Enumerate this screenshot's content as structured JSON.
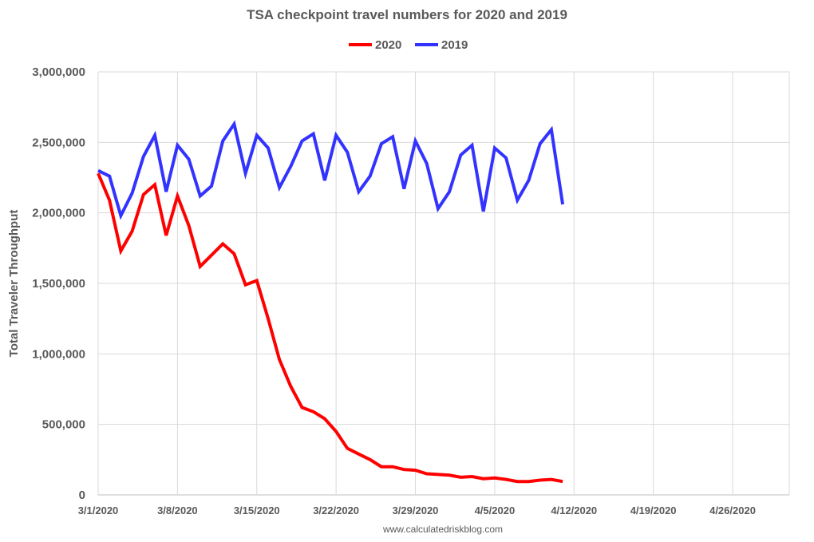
{
  "chart_data": {
    "type": "line",
    "title": "TSA checkpoint travel numbers for 2020 and 2019",
    "xlabel": "",
    "ylabel": "Total Traveler Throughput",
    "ylim": [
      0,
      3000000
    ],
    "yticks": [
      0,
      500000,
      1000000,
      1500000,
      2000000,
      2500000,
      3000000
    ],
    "ytick_labels": [
      "0",
      "500,000",
      "1,000,000",
      "1,500,000",
      "2,000,000",
      "2,500,000",
      "3,000,000"
    ],
    "xlim_days": [
      0,
      61
    ],
    "xticks_days": [
      0,
      7,
      14,
      21,
      28,
      35,
      42,
      49,
      56
    ],
    "xtick_labels": [
      "3/1/2020",
      "3/8/2020",
      "3/15/2020",
      "3/22/2020",
      "3/29/2020",
      "4/5/2020",
      "4/12/2020",
      "4/19/2020",
      "4/26/2020"
    ],
    "x_day_offsets": [
      0,
      1,
      2,
      3,
      4,
      5,
      6,
      7,
      8,
      9,
      10,
      11,
      12,
      13,
      14,
      15,
      16,
      17,
      18,
      19,
      20,
      21,
      22,
      23,
      24,
      25,
      26,
      27,
      28,
      29,
      30,
      31,
      32,
      33,
      34,
      35,
      36,
      37,
      38,
      39,
      40,
      41
    ],
    "series": [
      {
        "name": "2020",
        "color": "#ff0000",
        "values": [
          2280000,
          2090000,
          1730000,
          1870000,
          2130000,
          2200000,
          1840000,
          2120000,
          1910000,
          1620000,
          1700000,
          1780000,
          1710000,
          1490000,
          1520000,
          1250000,
          960000,
          770000,
          620000,
          590000,
          540000,
          450000,
          330000,
          290000,
          250000,
          200000,
          200000,
          180000,
          175000,
          150000,
          145000,
          140000,
          125000,
          130000,
          115000,
          120000,
          110000,
          95000,
          95000,
          105000,
          110000,
          95000
        ]
      },
      {
        "name": "2019",
        "color": "#3333ff",
        "values": [
          2300000,
          2260000,
          1980000,
          2140000,
          2400000,
          2550000,
          2150000,
          2480000,
          2380000,
          2120000,
          2190000,
          2510000,
          2630000,
          2280000,
          2550000,
          2460000,
          2180000,
          2330000,
          2510000,
          2560000,
          2230000,
          2550000,
          2430000,
          2150000,
          2260000,
          2490000,
          2540000,
          2170000,
          2510000,
          2350000,
          2030000,
          2150000,
          2410000,
          2480000,
          2010000,
          2460000,
          2390000,
          2090000,
          2230000,
          2490000,
          2590000,
          2060000
        ]
      }
    ],
    "legend_position": "top-center",
    "source": "www.calculatedriskblog.com"
  }
}
